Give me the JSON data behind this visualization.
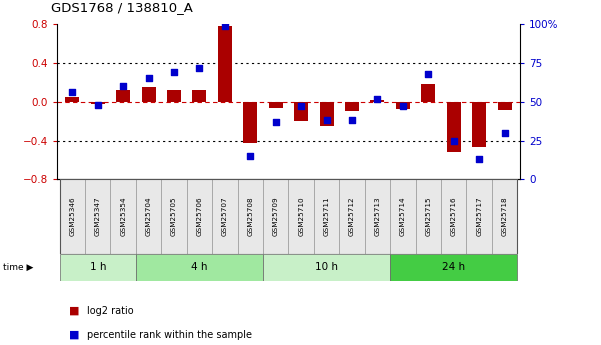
{
  "title": "GDS1768 / 138810_A",
  "samples": [
    "GSM25346",
    "GSM25347",
    "GSM25354",
    "GSM25704",
    "GSM25705",
    "GSM25706",
    "GSM25707",
    "GSM25708",
    "GSM25709",
    "GSM25710",
    "GSM25711",
    "GSM25712",
    "GSM25713",
    "GSM25714",
    "GSM25715",
    "GSM25716",
    "GSM25717",
    "GSM25718"
  ],
  "log2_ratio": [
    0.05,
    -0.02,
    0.12,
    0.15,
    0.12,
    0.12,
    0.78,
    -0.42,
    -0.06,
    -0.2,
    -0.25,
    -0.1,
    0.02,
    -0.07,
    0.18,
    -0.52,
    -0.47,
    -0.08
  ],
  "percentile": [
    56,
    48,
    60,
    65,
    69,
    72,
    99,
    15,
    37,
    47,
    38,
    38,
    52,
    47,
    68,
    25,
    13,
    30
  ],
  "time_groups": [
    {
      "label": "1 h",
      "start": 0,
      "end": 3,
      "color": "#c8f0c8"
    },
    {
      "label": "4 h",
      "start": 3,
      "end": 8,
      "color": "#a0e8a0"
    },
    {
      "label": "10 h",
      "start": 8,
      "end": 13,
      "color": "#c8f0c8"
    },
    {
      "label": "24 h",
      "start": 13,
      "end": 18,
      "color": "#44cc44"
    }
  ],
  "ylim_left": [
    -0.8,
    0.8
  ],
  "ylim_right": [
    0,
    100
  ],
  "bar_color": "#aa0000",
  "dot_color": "#0000cc",
  "zero_line_color": "#cc0000",
  "grid_color": "#000000",
  "bg_color": "#ffffff",
  "left_tick_color": "#cc0000",
  "right_tick_color": "#0000cc",
  "left_yticks": [
    -0.8,
    -0.4,
    0.0,
    0.4,
    0.8
  ],
  "right_yticks": [
    0,
    25,
    50,
    75,
    100
  ],
  "right_yticklabels": [
    "0",
    "25",
    "50",
    "75",
    "100%"
  ]
}
